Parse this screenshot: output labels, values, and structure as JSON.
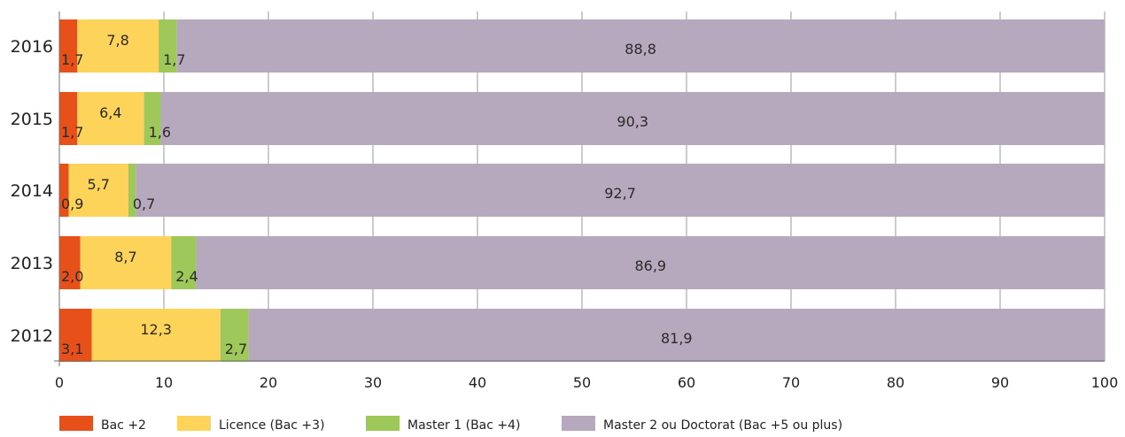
{
  "chart_data": {
    "type": "bar",
    "orientation": "horizontal",
    "stacked": true,
    "categories": [
      "2016",
      "2015",
      "2014",
      "2013",
      "2012"
    ],
    "series": [
      {
        "name": "Bac +2",
        "color": "#e8501a",
        "values": [
          1.7,
          1.7,
          0.9,
          2.0,
          3.1
        ],
        "labels": [
          "1,7",
          "1,7",
          "0,9",
          "2,0",
          "3,1"
        ]
      },
      {
        "name": "Licence (Bac +3)",
        "color": "#fdd35a",
        "values": [
          7.8,
          6.4,
          5.7,
          8.7,
          12.3
        ],
        "labels": [
          "7,8",
          "6,4",
          "5,7",
          "8,7",
          "12,3"
        ]
      },
      {
        "name": "Master 1 (Bac +4)",
        "color": "#9ec95a",
        "values": [
          1.7,
          1.6,
          0.7,
          2.4,
          2.7
        ],
        "labels": [
          "1,7",
          "1,6",
          "0,7",
          "2,4",
          "2,7"
        ]
      },
      {
        "name": "Master 2 ou Doctorat (Bac +5 ou plus)",
        "color": "#b6a8bd",
        "values": [
          88.8,
          90.3,
          92.7,
          86.9,
          81.9
        ],
        "labels": [
          "88,8",
          "90,3",
          "92,7",
          "86,9",
          "81,9"
        ]
      }
    ],
    "xlim": [
      0,
      100
    ],
    "xticks": [
      "0",
      "10",
      "20",
      "30",
      "40",
      "50",
      "60",
      "70",
      "80",
      "90",
      "100"
    ],
    "grid": true,
    "legend": "bottom",
    "title": "",
    "xlabel": "",
    "ylabel": ""
  }
}
